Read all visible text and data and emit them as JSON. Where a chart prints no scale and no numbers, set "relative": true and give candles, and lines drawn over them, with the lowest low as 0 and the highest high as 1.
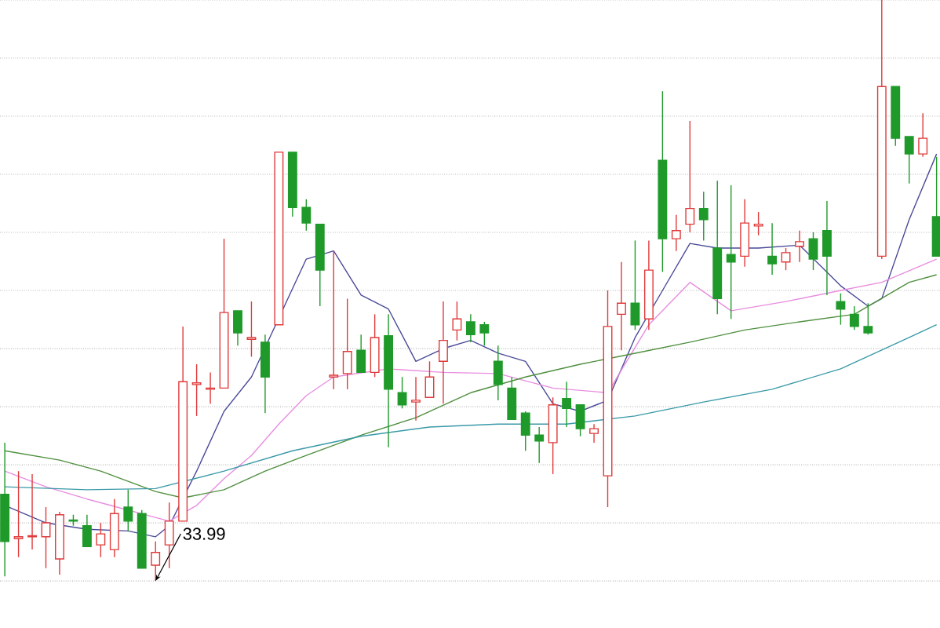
{
  "chart_data": {
    "type": "candlestick",
    "relative": true,
    "grid": "y",
    "categories": [
      null,
      null,
      null,
      null,
      null,
      null,
      null,
      null,
      null,
      null,
      null,
      null,
      null,
      null,
      null,
      null,
      null,
      null,
      null,
      null,
      null,
      null,
      null,
      null,
      null,
      null,
      null,
      null,
      null,
      null,
      null,
      null,
      null,
      null,
      null,
      null,
      null,
      null,
      null,
      null,
      null,
      null,
      null,
      null,
      null,
      null,
      null,
      null,
      null,
      null,
      null,
      null,
      null,
      null,
      null,
      null,
      null,
      null,
      null,
      null,
      null,
      null,
      null,
      null,
      null,
      null,
      null,
      null,
      null
    ],
    "ohlc": [
      [
        0.149,
        0.238,
        0.008,
        0.068
      ],
      [
        0.073,
        0.189,
        0.041,
        0.076
      ],
      [
        0.076,
        0.184,
        0.054,
        0.078
      ],
      [
        0.076,
        0.127,
        0.022,
        0.1
      ],
      [
        0.038,
        0.119,
        0.011,
        0.114
      ],
      [
        0.105,
        0.114,
        0.095,
        0.103
      ],
      [
        0.095,
        0.114,
        0.059,
        0.059
      ],
      [
        0.062,
        0.1,
        0.041,
        0.081
      ],
      [
        0.054,
        0.141,
        0.041,
        0.116
      ],
      [
        0.127,
        0.157,
        0.086,
        0.103
      ],
      [
        0.116,
        0.122,
        0.022,
        0.022
      ],
      [
        0.027,
        0.068,
        0,
        0.049
      ],
      [
        0.062,
        0.135,
        0.022,
        0.103
      ],
      [
        0.103,
        0.438,
        0.103,
        0.343
      ],
      [
        0.338,
        0.373,
        0.284,
        0.341
      ],
      [
        0.33,
        0.359,
        0.305,
        0.332
      ],
      [
        0.332,
        0.589,
        0.332,
        0.462
      ],
      [
        0.465,
        0.465,
        0.405,
        0.427
      ],
      [
        0.416,
        0.481,
        0.386,
        0.419
      ],
      [
        0.411,
        0.424,
        0.289,
        0.351
      ],
      [
        0.441,
        0.738,
        0.441,
        0.738
      ],
      [
        0.738,
        0.738,
        0.627,
        0.643
      ],
      [
        0.643,
        0.657,
        0.603,
        0.616
      ],
      [
        0.614,
        0.614,
        0.473,
        0.535
      ],
      [
        0.351,
        0.568,
        0.33,
        0.354
      ],
      [
        0.357,
        0.486,
        0.33,
        0.395
      ],
      [
        0.397,
        0.424,
        0.359,
        0.359
      ],
      [
        0.359,
        0.459,
        0.351,
        0.419
      ],
      [
        0.422,
        0.459,
        0.23,
        0.33
      ],
      [
        0.324,
        0.351,
        0.297,
        0.303
      ],
      [
        0.308,
        0.351,
        0.276,
        0.311
      ],
      [
        0.316,
        0.378,
        0.316,
        0.351
      ],
      [
        0.378,
        0.481,
        0.305,
        0.414
      ],
      [
        0.432,
        0.481,
        0.414,
        0.451
      ],
      [
        0.446,
        0.459,
        0.411,
        0.424
      ],
      [
        0.441,
        0.446,
        0.405,
        0.427
      ],
      [
        0.378,
        0.405,
        0.311,
        0.338
      ],
      [
        0.332,
        0.351,
        0.278,
        0.278
      ],
      [
        0.289,
        0.292,
        0.224,
        0.251
      ],
      [
        0.251,
        0.265,
        0.203,
        0.241
      ],
      [
        0.238,
        0.316,
        0.184,
        0.303
      ],
      [
        0.314,
        0.343,
        0.265,
        0.297
      ],
      [
        0.303,
        0.303,
        0.249,
        0.262
      ],
      [
        0.254,
        0.27,
        0.238,
        0.262
      ],
      [
        0.181,
        0.5,
        0.127,
        0.438
      ],
      [
        0.459,
        0.549,
        0.397,
        0.478
      ],
      [
        0.478,
        0.586,
        0.432,
        0.441
      ],
      [
        0.451,
        0.586,
        0.432,
        0.535
      ],
      [
        0.724,
        0.843,
        0.532,
        0.589
      ],
      [
        0.589,
        0.63,
        0.568,
        0.603
      ],
      [
        0.614,
        0.792,
        0.6,
        0.641
      ],
      [
        0.641,
        0.67,
        0.586,
        0.622
      ],
      [
        0.573,
        0.689,
        0.459,
        0.486
      ],
      [
        0.562,
        0.681,
        0.451,
        0.549
      ],
      [
        0.559,
        0.657,
        0.541,
        0.616
      ],
      [
        0.611,
        0.635,
        0.595,
        0.614
      ],
      [
        0.559,
        0.616,
        0.527,
        0.546
      ],
      [
        0.549,
        0.573,
        0.535,
        0.565
      ],
      [
        0.576,
        0.603,
        0.549,
        0.584
      ],
      [
        0.589,
        0.6,
        0.535,
        0.554
      ],
      [
        0.603,
        0.654,
        0.492,
        0.559
      ],
      [
        0.481,
        0.495,
        0.441,
        0.468
      ],
      [
        0.459,
        0.473,
        0.432,
        0.438
      ],
      [
        0.438,
        0.478,
        0.424,
        0.427
      ],
      [
        0.559,
        1,
        0.554,
        0.851
      ],
      [
        0.851,
        0.851,
        0.749,
        0.762
      ],
      [
        0.765,
        0.765,
        0.684,
        0.735
      ],
      [
        0.735,
        0.805,
        0.73,
        0.762
      ],
      [
        0.627,
        0.73,
        0.559,
        0.559
      ]
    ],
    "colors": [
      "#1f9a2a",
      "#e03a3a",
      "#e03a3a",
      "#e03a3a",
      "#e03a3a",
      "#1f9a2a",
      "#1f9a2a",
      "#e03a3a",
      "#e03a3a",
      "#1f9a2a",
      "#1f9a2a",
      "#e03a3a",
      "#e03a3a",
      "#e03a3a",
      "#e03a3a",
      "#e03a3a",
      "#e03a3a",
      "#1f9a2a",
      "#e03a3a",
      "#1f9a2a",
      "#e03a3a",
      "#1f9a2a",
      "#1f9a2a",
      "#1f9a2a",
      "#e03a3a",
      "#e03a3a",
      "#1f9a2a",
      "#e03a3a",
      "#1f9a2a",
      "#1f9a2a",
      "#e03a3a",
      "#e03a3a",
      "#e03a3a",
      "#e03a3a",
      "#1f9a2a",
      "#1f9a2a",
      "#1f9a2a",
      "#1f9a2a",
      "#1f9a2a",
      "#1f9a2a",
      "#e03a3a",
      "#1f9a2a",
      "#1f9a2a",
      "#e03a3a",
      "#e03a3a",
      "#e03a3a",
      "#1f9a2a",
      "#e03a3a",
      "#1f9a2a",
      "#e03a3a",
      "#e03a3a",
      "#1f9a2a",
      "#1f9a2a",
      "#1f9a2a",
      "#e03a3a",
      "#e03a3a",
      "#1f9a2a",
      "#e03a3a",
      "#e03a3a",
      "#1f9a2a",
      "#1f9a2a",
      "#1f9a2a",
      "#1f9a2a",
      "#1f9a2a",
      "#e03a3a",
      "#1f9a2a",
      "#1f9a2a",
      "#e03a3a",
      "#1f9a2a"
    ],
    "series": [
      {
        "type": "line",
        "color": "#4a4a9a",
        "values": [
          0.13,
          null,
          null,
          0.1,
          null,
          null,
          0.089,
          null,
          null,
          0.086,
          null,
          0.076,
          0.095,
          null,
          0.189,
          null,
          0.292,
          null,
          0.351,
          null,
          null,
          null,
          0.554,
          null,
          0.568,
          null,
          0.492,
          null,
          0.468,
          null,
          0.378,
          null,
          0.4,
          null,
          0.414,
          null,
          0.392,
          null,
          0.378,
          null,
          0.305,
          null,
          0.292,
          null,
          0.311,
          null,
          0.419,
          null,
          0.5,
          null,
          0.581,
          null,
          0.573,
          null,
          null,
          0.573,
          null,
          null,
          0.578,
          null,
          null,
          0.508,
          null,
          0.473,
          0.486,
          null,
          0.622,
          null,
          0.735
        ]
      },
      {
        "type": "line",
        "color": "#e88de0",
        "values": [
          0.189,
          null,
          null,
          0.162,
          null,
          null,
          0.141,
          null,
          null,
          0.122,
          null,
          null,
          0.103,
          null,
          0.13,
          null,
          0.176,
          null,
          0.216,
          null,
          0.27,
          null,
          0.319,
          null,
          0.351,
          null,
          null,
          null,
          0.365,
          null,
          null,
          null,
          0.359,
          null,
          null,
          null,
          0.357,
          null,
          null,
          null,
          0.332,
          null,
          null,
          null,
          0.324,
          null,
          null,
          0.441,
          null,
          null,
          0.514,
          null,
          null,
          0.465,
          null,
          null,
          null,
          0.481,
          null,
          null,
          null,
          0.5,
          null,
          null,
          0.514,
          null,
          null,
          null,
          0.554
        ]
      },
      {
        "type": "line",
        "color": "#4f8f3f",
        "values": [
          0.224,
          null,
          null,
          null,
          0.208,
          null,
          null,
          0.189,
          null,
          null,
          null,
          0.154,
          null,
          0.143,
          null,
          null,
          0.157,
          null,
          null,
          0.189,
          null,
          null,
          0.216,
          null,
          null,
          null,
          0.251,
          null,
          null,
          null,
          0.281,
          null,
          null,
          null,
          0.324,
          null,
          null,
          null,
          0.351,
          null,
          null,
          null,
          0.373,
          null,
          null,
          null,
          0.392,
          null,
          null,
          null,
          0.411,
          null,
          null,
          null,
          0.432,
          null,
          null,
          null,
          0.446,
          null,
          null,
          null,
          0.459,
          null,
          null,
          null,
          0.514,
          null,
          0.527
        ]
      },
      {
        "type": "line",
        "color": "#3a9aa8",
        "values": [
          0.162,
          null,
          null,
          null,
          null,
          null,
          0.157,
          null,
          null,
          null,
          null,
          0.159,
          null,
          null,
          null,
          null,
          0.189,
          null,
          null,
          null,
          null,
          0.224,
          null,
          null,
          null,
          null,
          0.249,
          null,
          null,
          null,
          null,
          0.265,
          null,
          null,
          null,
          null,
          0.27,
          null,
          null,
          null,
          null,
          0.27,
          null,
          null,
          null,
          null,
          0.284,
          null,
          null,
          null,
          null,
          0.308,
          null,
          null,
          null,
          null,
          0.33,
          null,
          null,
          null,
          null,
          0.365,
          null,
          null,
          null,
          null,
          0.419,
          null,
          0.441
        ]
      }
    ],
    "annotations": [
      "33.99"
    ]
  }
}
